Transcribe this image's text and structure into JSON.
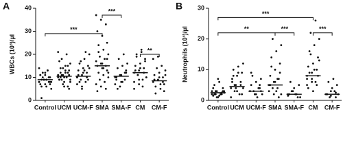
{
  "chart_data": [
    {
      "type": "dotplot",
      "panel": "A",
      "ylabel": "WBCs (10³)/µl",
      "categories": [
        "Control",
        "UCM",
        "UCM-F",
        "SMA",
        "SMA-F",
        "CM",
        "CM-F"
      ],
      "values": [
        [
          8,
          9,
          10,
          11,
          12,
          7,
          6,
          9,
          8,
          10,
          13,
          14,
          9,
          8,
          7,
          11,
          10,
          9,
          6,
          5,
          12,
          13,
          8,
          9,
          10,
          11,
          7,
          8,
          1,
          9
        ],
        [
          10,
          11,
          12,
          9,
          8,
          13,
          14,
          15,
          16,
          18,
          20,
          21,
          7,
          6,
          9,
          10,
          11,
          12,
          13,
          8,
          9,
          10,
          11,
          14,
          15,
          17,
          6,
          5,
          10,
          12,
          9,
          11
        ],
        [
          10,
          11,
          12,
          13,
          14,
          15,
          16,
          18,
          20,
          9,
          8,
          7,
          6,
          10,
          11,
          12,
          9,
          8,
          13,
          14,
          17,
          21,
          10,
          5
        ],
        [
          37,
          35,
          33,
          30,
          28,
          25,
          24,
          22,
          20,
          19,
          18,
          17,
          16,
          15,
          15,
          14,
          13,
          12,
          11,
          10,
          9,
          8,
          7,
          6,
          5,
          4,
          16,
          18,
          21,
          14,
          12
        ],
        [
          10,
          11,
          12,
          9,
          8,
          13,
          14,
          15,
          16,
          18,
          20,
          7,
          6,
          9,
          10,
          11,
          12,
          5,
          8
        ],
        [
          12,
          13,
          14,
          15,
          16,
          18,
          20,
          22,
          10,
          11,
          9,
          8,
          7,
          12,
          13,
          14,
          17,
          19,
          21,
          10,
          11,
          6,
          5,
          9
        ],
        [
          8,
          9,
          10,
          11,
          12,
          7,
          6,
          5,
          13,
          14,
          15,
          18,
          19,
          8,
          9,
          10,
          4,
          3,
          7,
          11
        ]
      ],
      "medians": [
        9,
        10.5,
        10.5,
        15,
        10.5,
        12,
        8.5
      ],
      "color": "#111111",
      "ylim": [
        0,
        40
      ],
      "yticks": [
        0,
        10,
        20,
        30,
        40
      ],
      "brackets": [
        {
          "from": 0,
          "to": 3,
          "y": 29,
          "label": "***"
        },
        {
          "from": 3,
          "to": 4,
          "y": 37,
          "label": "***"
        },
        {
          "from": 5,
          "to": 6,
          "y": 20,
          "label": "**"
        }
      ]
    },
    {
      "type": "dotplot",
      "panel": "B",
      "ylabel": "Neutrophils (10³)/µl",
      "categories": [
        "Control",
        "UCM",
        "UCM-F",
        "SMA",
        "SMA-F",
        "CM",
        "CM-F"
      ],
      "values": [
        [
          2,
          3,
          2.5,
          1.5,
          1,
          4,
          5,
          6,
          3,
          2,
          2,
          3,
          1,
          2,
          4,
          7,
          3,
          2,
          1.5,
          2.5,
          3
        ],
        [
          4,
          5,
          6,
          7,
          8,
          9,
          10,
          11,
          12,
          3,
          2,
          1,
          4,
          5,
          6,
          3,
          2,
          8,
          9,
          4,
          5
        ],
        [
          3,
          2,
          4,
          5,
          6,
          7,
          8,
          1,
          2,
          3,
          4,
          3,
          2,
          5,
          9,
          2,
          3
        ],
        [
          5,
          6,
          7,
          8,
          10,
          12,
          14,
          16,
          18,
          20,
          4,
          3,
          2,
          1,
          5,
          6,
          9,
          11,
          3,
          2,
          4,
          7
        ],
        [
          2,
          3,
          1,
          2,
          4,
          5,
          6,
          2,
          1,
          3,
          2,
          1.5
        ],
        [
          8,
          9,
          10,
          11,
          12,
          14,
          16,
          18,
          20,
          22,
          26,
          7,
          6,
          5,
          4,
          3,
          8,
          9,
          10,
          13,
          15,
          6,
          5,
          7
        ],
        [
          2,
          3,
          1,
          2,
          4,
          5,
          6,
          7,
          2,
          1,
          3,
          2,
          1.5,
          2.5
        ]
      ],
      "medians": [
        2.5,
        4.5,
        3,
        5,
        2,
        8,
        2
      ],
      "color": "#111111",
      "ylim": [
        0,
        30
      ],
      "yticks": [
        0,
        10,
        20,
        30
      ],
      "brackets": [
        {
          "from": 0,
          "to": 5,
          "y": 27,
          "label": "***"
        },
        {
          "from": 0,
          "to": 3,
          "y": 22,
          "label": "**"
        },
        {
          "from": 3,
          "to": 4,
          "y": 22,
          "label": "***"
        },
        {
          "from": 5,
          "to": 6,
          "y": 22,
          "label": "***"
        }
      ]
    }
  ]
}
